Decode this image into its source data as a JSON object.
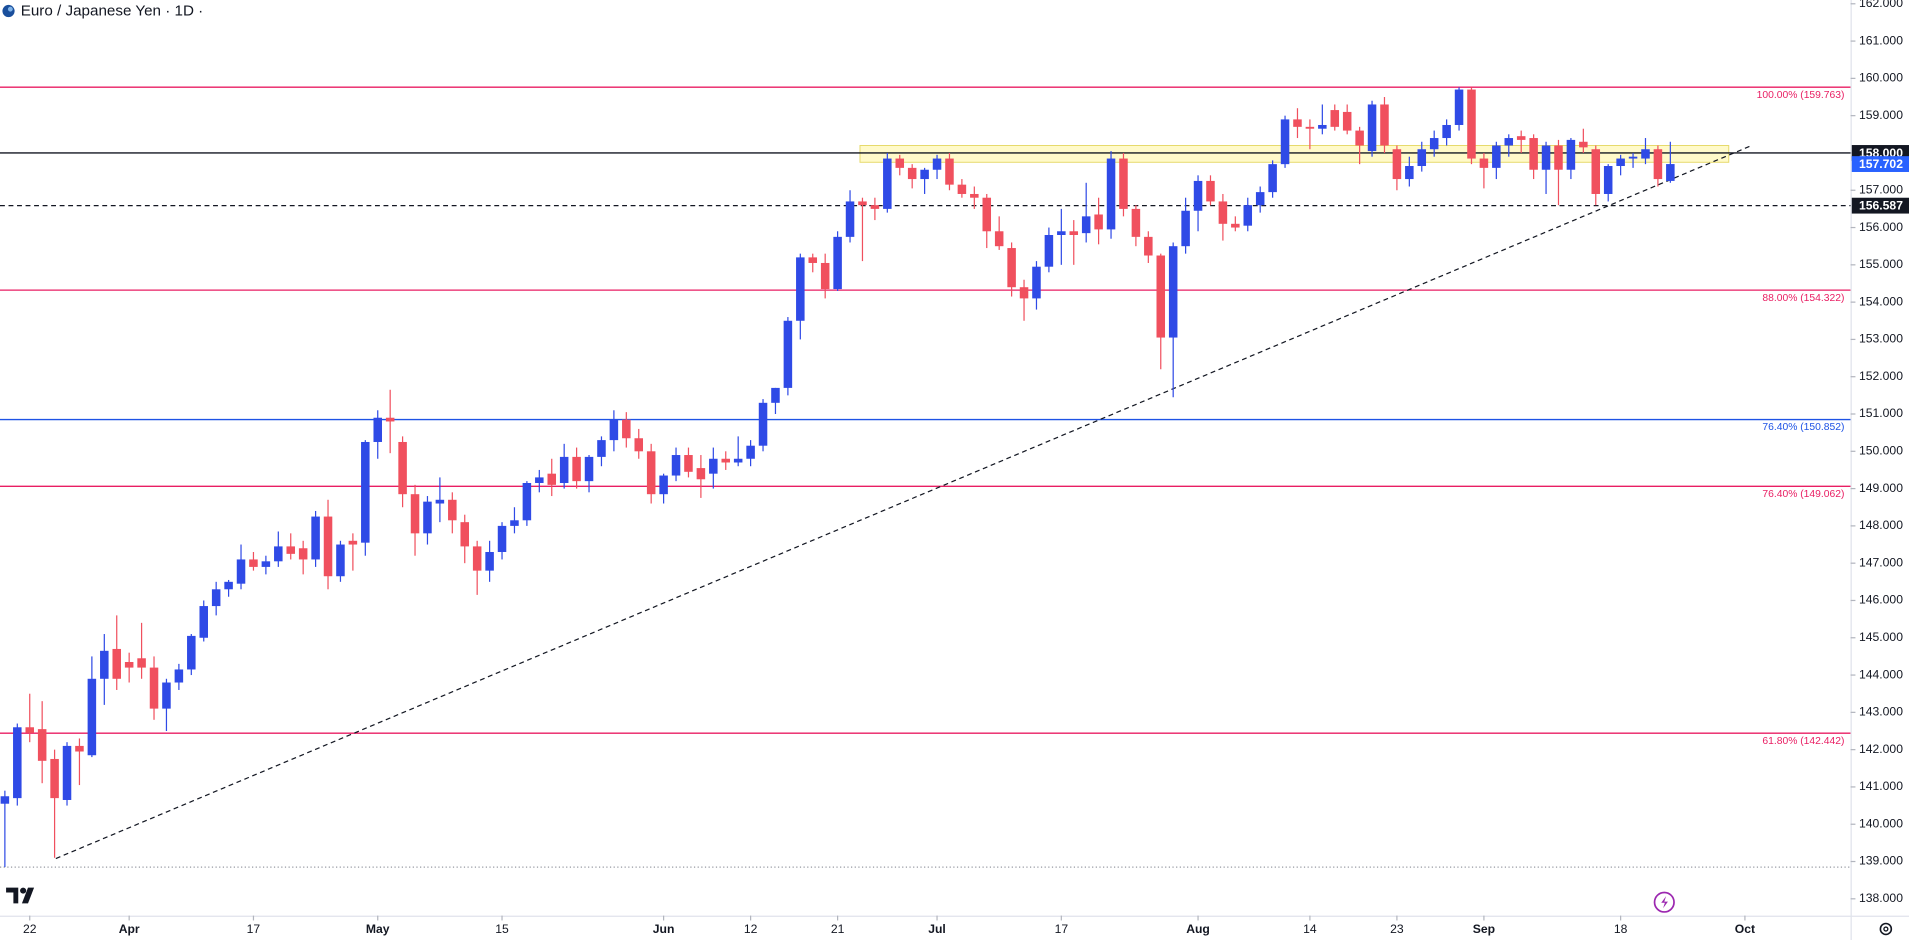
{
  "chart_data": {
    "type": "candlestick",
    "title": "Euro / Japanese Yen · 1D ·",
    "up_color": "#2f4ae6",
    "down_color": "#f0505e",
    "grid": false,
    "ylim": [
      137.55,
      162.1
    ],
    "yticks": [
      {
        "value": 138,
        "label": "138.000"
      },
      {
        "value": 139,
        "label": "139.000"
      },
      {
        "value": 140,
        "label": "140.000"
      },
      {
        "value": 141,
        "label": "141.000"
      },
      {
        "value": 142,
        "label": "142.000"
      },
      {
        "value": 143,
        "label": "143.000"
      },
      {
        "value": 144,
        "label": "144.000"
      },
      {
        "value": 145,
        "label": "145.000"
      },
      {
        "value": 146,
        "label": "146.000"
      },
      {
        "value": 147,
        "label": "147.000"
      },
      {
        "value": 148,
        "label": "148.000"
      },
      {
        "value": 149,
        "label": "149.000"
      },
      {
        "value": 150,
        "label": "150.000"
      },
      {
        "value": 151,
        "label": "151.000"
      },
      {
        "value": 152,
        "label": "152.000"
      },
      {
        "value": 153,
        "label": "153.000"
      },
      {
        "value": 154,
        "label": "154.000"
      },
      {
        "value": 155,
        "label": "155.000"
      },
      {
        "value": 156,
        "label": "156.000"
      },
      {
        "value": 157,
        "label": "157.000"
      },
      {
        "value": 158,
        "label": "158.000"
      },
      {
        "value": 159,
        "label": "159.000"
      },
      {
        "value": 160,
        "label": "160.000"
      },
      {
        "value": 161,
        "label": "161.000"
      },
      {
        "value": 162,
        "label": "162.000"
      }
    ],
    "categories": [
      null,
      null,
      "22",
      null,
      null,
      null,
      null,
      null,
      null,
      null,
      "Apr",
      null,
      null,
      null,
      null,
      null,
      null,
      null,
      null,
      null,
      "17",
      null,
      null,
      null,
      null,
      null,
      null,
      null,
      null,
      null,
      "May",
      null,
      null,
      null,
      null,
      null,
      null,
      null,
      null,
      null,
      "15",
      null,
      null,
      null,
      null,
      null,
      null,
      null,
      null,
      null,
      null,
      null,
      null,
      "Jun",
      null,
      null,
      null,
      null,
      null,
      null,
      "12",
      null,
      null,
      null,
      null,
      null,
      null,
      "21",
      null,
      null,
      null,
      null,
      null,
      null,
      null,
      "Jul",
      null,
      null,
      null,
      null,
      null,
      null,
      null,
      null,
      null,
      "17",
      null,
      null,
      null,
      null,
      null,
      null,
      null,
      null,
      null,
      null,
      "Aug",
      null,
      null,
      null,
      null,
      null,
      null,
      null,
      null,
      "14",
      null,
      null,
      null,
      null,
      null,
      null,
      "23",
      null,
      null,
      null,
      null,
      null,
      null,
      "Sep",
      null,
      null,
      null,
      null,
      null,
      null,
      null,
      null,
      null,
      null,
      "18",
      null,
      null,
      null,
      null,
      null,
      null,
      null,
      null,
      null,
      "Oct",
      null,
      null,
      null,
      null,
      null,
      null,
      null,
      null
    ],
    "open": [
      140.55,
      140.7,
      142.6,
      142.55,
      141.75,
      140.65,
      142.1,
      141.85,
      143.9,
      144.7,
      144.35,
      144.45,
      144.2,
      143.1,
      143.8,
      144.15,
      145.0,
      145.85,
      146.3,
      146.45,
      147.1,
      146.9,
      147.05,
      147.45,
      147.4,
      147.1,
      148.25,
      146.65,
      147.6,
      147.55,
      150.25,
      150.9,
      150.25,
      148.85,
      147.8,
      148.6,
      148.7,
      148.1,
      147.45,
      146.8,
      147.3,
      148.0,
      148.15,
      149.15,
      149.4,
      149.15,
      149.85,
      149.2,
      149.85,
      150.3,
      150.85,
      150.35,
      150.0,
      148.85,
      149.35,
      149.9,
      149.55,
      149.4,
      149.8,
      149.7,
      149.8,
      150.15,
      151.3,
      151.7,
      153.5,
      155.2,
      155.05,
      154.35,
      155.75,
      156.7,
      156.6,
      156.5,
      157.85,
      157.6,
      157.3,
      157.55,
      157.85,
      157.15,
      156.9,
      156.8,
      155.9,
      155.45,
      154.4,
      154.1,
      154.95,
      155.8,
      155.9,
      155.85,
      156.35,
      155.95,
      157.85,
      156.5,
      155.75,
      155.25,
      153.05,
      155.5,
      156.45,
      157.25,
      156.7,
      156.1,
      156.05,
      156.6,
      156.95,
      157.7,
      158.9,
      158.7,
      158.65,
      159.15,
      159.1,
      158.6,
      158.05,
      159.3,
      158.1,
      157.3,
      157.65,
      158.1,
      158.4,
      158.75,
      159.7,
      157.85,
      157.6,
      158.2,
      158.45,
      158.4,
      157.55,
      158.2,
      157.55,
      158.3,
      158.1,
      156.9,
      157.65,
      157.85,
      157.85,
      158.1,
      157.25,
      null,
      null,
      null,
      null,
      null,
      null,
      null,
      null,
      null,
      null,
      null,
      null,
      null,
      null
    ],
    "high": [
      140.9,
      142.7,
      143.5,
      143.3,
      142.0,
      142.2,
      142.3,
      144.5,
      145.1,
      145.6,
      144.6,
      145.4,
      144.5,
      143.9,
      144.3,
      145.1,
      146.0,
      146.5,
      146.55,
      147.5,
      147.3,
      147.2,
      147.85,
      147.8,
      147.6,
      148.4,
      148.7,
      147.6,
      147.8,
      150.3,
      151.1,
      151.65,
      150.4,
      149.1,
      148.8,
      149.3,
      148.9,
      148.3,
      147.6,
      147.6,
      148.1,
      148.5,
      149.2,
      149.5,
      149.8,
      150.2,
      150.1,
      149.9,
      150.4,
      151.1,
      151.05,
      150.6,
      150.2,
      149.4,
      150.1,
      150.1,
      149.9,
      150.1,
      150.0,
      150.4,
      150.3,
      151.4,
      151.7,
      153.6,
      155.3,
      155.3,
      155.3,
      155.9,
      157.0,
      156.8,
      156.8,
      158.0,
      157.95,
      157.7,
      157.6,
      157.95,
      158.0,
      157.3,
      157.1,
      156.9,
      156.3,
      155.6,
      154.6,
      155.1,
      156.0,
      156.5,
      156.2,
      157.2,
      156.8,
      158.05,
      158.0,
      156.6,
      155.9,
      155.3,
      155.6,
      156.8,
      157.4,
      157.4,
      156.9,
      156.3,
      156.8,
      157.1,
      157.8,
      159.0,
      159.2,
      158.9,
      159.3,
      159.3,
      159.3,
      158.7,
      159.4,
      159.5,
      158.2,
      157.9,
      158.3,
      158.6,
      158.9,
      159.76,
      159.76,
      158.0,
      158.3,
      158.5,
      158.6,
      158.5,
      158.3,
      158.35,
      158.4,
      158.65,
      158.2,
      157.7,
      157.95,
      158.0,
      158.4,
      158.2,
      158.3,
      null,
      null,
      null,
      null,
      null,
      null,
      null,
      null,
      null,
      null,
      null,
      null,
      null,
      null
    ],
    "low": [
      138.85,
      140.5,
      142.2,
      141.1,
      139.1,
      140.5,
      141.05,
      141.8,
      143.2,
      143.6,
      143.8,
      143.9,
      142.8,
      142.5,
      143.6,
      144.0,
      144.9,
      145.6,
      146.1,
      146.3,
      146.8,
      146.7,
      146.9,
      147.1,
      146.7,
      146.9,
      146.3,
      146.5,
      146.8,
      147.2,
      149.8,
      149.95,
      148.5,
      147.2,
      147.5,
      148.1,
      147.8,
      147.0,
      146.15,
      146.5,
      147.1,
      147.8,
      148.0,
      148.9,
      148.8,
      149.0,
      149.0,
      148.9,
      149.6,
      150.0,
      150.1,
      149.8,
      148.6,
      148.6,
      149.2,
      149.3,
      148.75,
      149.0,
      149.5,
      149.6,
      149.6,
      150.0,
      151.0,
      151.5,
      153.0,
      154.8,
      154.1,
      154.3,
      155.6,
      155.1,
      156.2,
      156.4,
      157.4,
      157.05,
      156.9,
      157.3,
      157.0,
      156.8,
      156.5,
      155.45,
      155.4,
      154.15,
      153.5,
      153.8,
      154.8,
      155.0,
      155.0,
      155.6,
      155.55,
      155.7,
      156.3,
      155.5,
      155.05,
      152.2,
      151.45,
      155.3,
      155.9,
      156.6,
      155.65,
      155.9,
      155.9,
      156.4,
      156.8,
      157.6,
      158.4,
      158.1,
      158.5,
      158.6,
      158.5,
      157.7,
      157.9,
      158.0,
      157.0,
      157.1,
      157.5,
      157.9,
      158.2,
      158.6,
      157.7,
      157.05,
      157.3,
      157.9,
      158.0,
      157.3,
      156.9,
      156.6,
      157.3,
      158.0,
      156.6,
      156.7,
      157.4,
      157.6,
      157.7,
      157.1,
      157.2,
      null,
      null,
      null,
      null,
      null,
      null,
      null,
      null,
      null,
      null,
      null,
      null,
      null,
      null
    ],
    "close": [
      140.75,
      142.6,
      142.45,
      141.7,
      140.7,
      142.1,
      141.95,
      143.9,
      144.65,
      143.9,
      144.2,
      144.2,
      143.1,
      143.8,
      144.15,
      145.05,
      145.85,
      146.3,
      146.5,
      147.1,
      146.9,
      147.05,
      147.45,
      147.25,
      147.1,
      148.25,
      146.65,
      147.5,
      147.5,
      150.25,
      150.9,
      150.8,
      148.85,
      147.8,
      148.65,
      148.7,
      148.15,
      147.45,
      146.8,
      147.3,
      148.0,
      148.15,
      149.15,
      149.3,
      149.1,
      149.85,
      149.2,
      149.85,
      150.3,
      150.85,
      150.35,
      150.0,
      148.85,
      149.35,
      149.9,
      149.45,
      149.25,
      149.8,
      149.7,
      149.8,
      150.15,
      151.3,
      151.7,
      153.5,
      155.2,
      155.05,
      154.35,
      155.75,
      156.7,
      156.6,
      156.5,
      157.85,
      157.6,
      157.3,
      157.55,
      157.85,
      157.15,
      156.9,
      156.8,
      155.9,
      155.5,
      154.4,
      154.1,
      154.95,
      155.8,
      155.9,
      155.8,
      156.3,
      155.95,
      157.85,
      156.5,
      155.75,
      155.25,
      153.05,
      155.5,
      156.45,
      157.25,
      156.7,
      156.1,
      156.0,
      156.6,
      156.95,
      157.7,
      158.9,
      158.7,
      158.65,
      158.75,
      158.7,
      158.6,
      158.2,
      159.3,
      158.2,
      157.3,
      157.65,
      158.1,
      158.4,
      158.75,
      159.7,
      157.85,
      157.6,
      158.2,
      158.4,
      158.35,
      157.55,
      158.2,
      157.55,
      158.35,
      158.15,
      156.9,
      157.65,
      157.85,
      157.9,
      158.1,
      157.3,
      157.702,
      null,
      null,
      null,
      null,
      null,
      null,
      null,
      null,
      null,
      null,
      null,
      null,
      null,
      null
    ],
    "levels": [
      {
        "value": 159.763,
        "label": "100.00% (159.763)",
        "color": "#e91e63"
      },
      {
        "value": 154.322,
        "label": "88.00% (154.322)",
        "color": "#e91e63"
      },
      {
        "value": 150.852,
        "label": "76.40% (150.852)",
        "color": "#1e53e5"
      },
      {
        "value": 149.062,
        "label": "76.40% (149.062)",
        "color": "#e91e63"
      },
      {
        "value": 142.442,
        "label": "61.80% (142.442)",
        "color": "#e91e63"
      },
      {
        "value": 158,
        "color": "#131722"
      },
      {
        "value": 156.587,
        "color": "#131722",
        "style": "dashed"
      },
      {
        "value": 138.85,
        "color": "#9598a1",
        "style": "dotted"
      }
    ],
    "zone": {
      "from": 157.75,
      "to": 158.2,
      "start": 68.8,
      "end": 138.7,
      "color": "#fff59d"
    },
    "trendline": {
      "from": [
        4.1,
        139.08
      ],
      "to": [
        140.55,
        158.2
      ],
      "color": "#131722"
    },
    "price_tags": [
      {
        "value": 158,
        "label": "158.000",
        "color": "#131722"
      },
      {
        "value": 157.702,
        "label": "157.702",
        "color": "#2962ff"
      },
      {
        "value": 156.587,
        "label": "156.587",
        "color": "#131722"
      }
    ]
  }
}
